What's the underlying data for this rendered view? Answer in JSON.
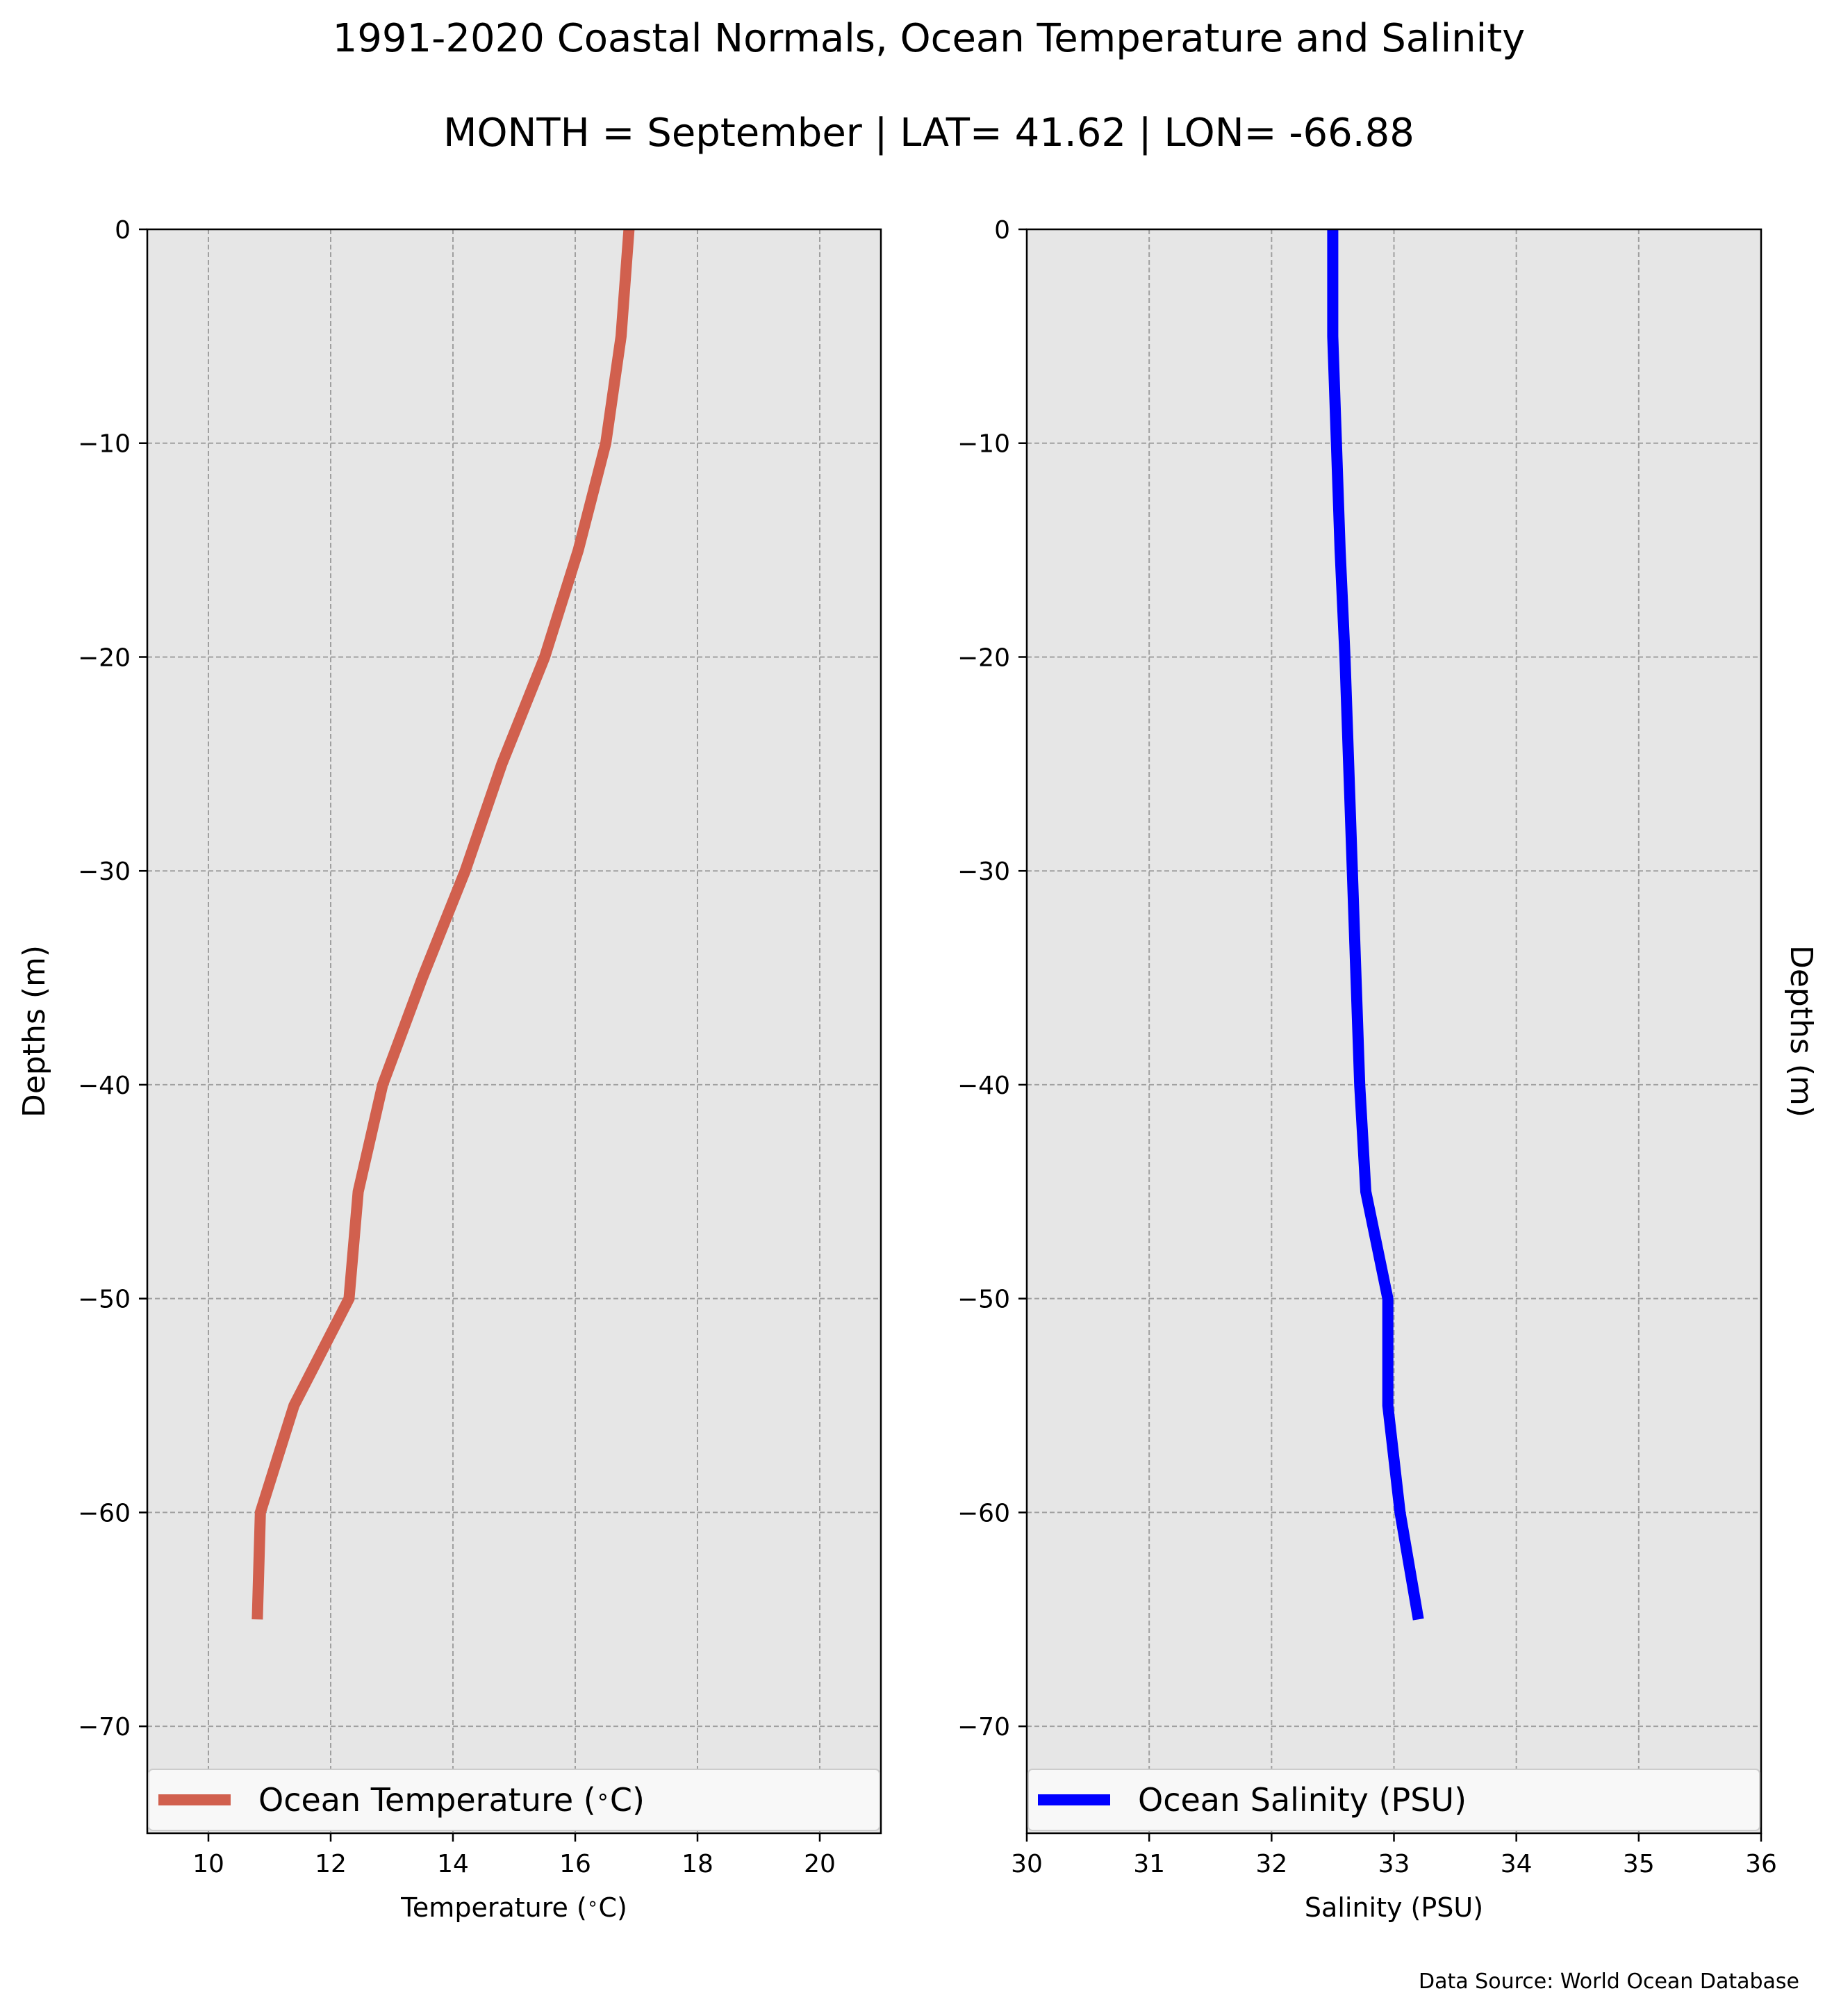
{
  "title": "1991-2020 Coastal Normals, Ocean Temperature and Salinity",
  "subtitle": "MONTH = September | LAT= 41.62 | LON= -66.88",
  "source": "Data Source: World Ocean Database",
  "colors": {
    "temperature": "#d1604e",
    "salinity": "#0000ff",
    "plot_bg": "#e6e6e6",
    "grid": "#a0a0a0"
  },
  "chart_data": [
    {
      "type": "line",
      "xlabel": "Temperature ($^\\circ$C)",
      "ylabel": "Depths (m)",
      "xlim": [
        9,
        21
      ],
      "ylim": [
        -75,
        0
      ],
      "xticks": [
        10,
        12,
        14,
        16,
        18,
        20
      ],
      "yticks": [
        0,
        -10,
        -20,
        -30,
        -40,
        -50,
        -60,
        -70
      ],
      "grid": true,
      "legend_position": "bottom",
      "series": [
        {
          "name": "Ocean Temperature ($^\\circ$C)",
          "x": [
            16.88,
            16.75,
            16.5,
            16.05,
            15.5,
            14.8,
            14.2,
            13.5,
            12.85,
            12.45,
            12.3,
            11.4,
            10.85,
            10.8
          ],
          "y": [
            0,
            -5,
            -10,
            -15,
            -20,
            -25,
            -30,
            -35,
            -40,
            -45,
            -50,
            -55,
            -60,
            -65
          ]
        }
      ]
    },
    {
      "type": "line",
      "xlabel": "Salinity (PSU)",
      "ylabel": "Depths (m)",
      "xlim": [
        30,
        36
      ],
      "ylim": [
        -75,
        0
      ],
      "xticks": [
        30,
        31,
        32,
        33,
        34,
        35,
        36
      ],
      "yticks": [
        0,
        -10,
        -20,
        -30,
        -40,
        -50,
        -60,
        -70
      ],
      "grid": true,
      "legend_position": "bottom",
      "series": [
        {
          "name": "Ocean Salinity (PSU)",
          "x": [
            32.5,
            32.5,
            32.53,
            32.56,
            32.6,
            32.63,
            32.66,
            32.69,
            32.72,
            32.77,
            32.95,
            32.95,
            33.05,
            33.2
          ],
          "y": [
            0,
            -5,
            -10,
            -15,
            -20,
            -25,
            -30,
            -35,
            -40,
            -45,
            -50,
            -55,
            -60,
            -65
          ]
        }
      ]
    }
  ]
}
